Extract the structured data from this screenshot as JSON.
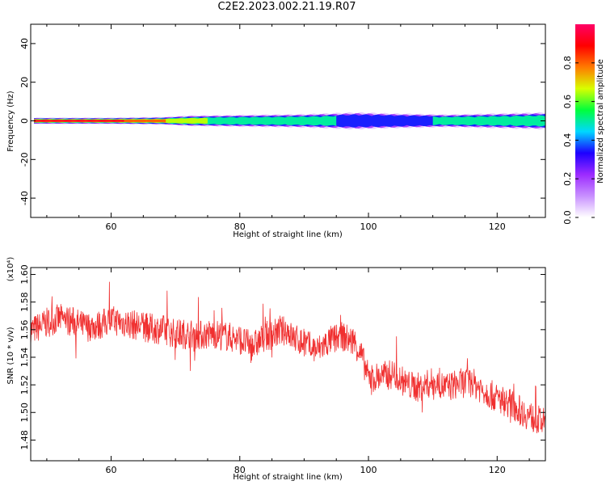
{
  "title": "C2E2.2023.002.21.19.R07",
  "chart_data": [
    {
      "type": "heatmap",
      "title": "",
      "xlabel": "Height of straight line (km)",
      "ylabel": "Frequency (Hz)",
      "xlim": [
        47.5,
        127.5
      ],
      "ylim": [
        -50,
        50
      ],
      "xticks": [
        60,
        80,
        100,
        120
      ],
      "yticks": [
        -40,
        -20,
        0,
        20,
        40
      ],
      "colorbar": {
        "label": "Normalized spectral amplitude",
        "range": [
          0.0,
          1.0
        ],
        "ticks": [
          0.0,
          0.2,
          0.4,
          0.6,
          0.8
        ],
        "colormap": [
          "#ffffff",
          "#c890ff",
          "#9c2bff",
          "#1d00ff",
          "#00d8ff",
          "#00ff3c",
          "#d8ff00",
          "#ff7a00",
          "#ff0000",
          "#ff0066"
        ]
      },
      "band": {
        "center_hz": 0,
        "half_width_hz": [
          [
            48,
            1.5
          ],
          [
            60,
            1.5
          ],
          [
            68,
            1.8
          ],
          [
            72,
            2.5
          ],
          [
            80,
            2.8
          ],
          [
            90,
            3.2
          ],
          [
            98,
            4.0
          ],
          [
            104,
            3.5
          ],
          [
            112,
            3.0
          ],
          [
            120,
            3.5
          ],
          [
            127,
            4.0
          ]
        ],
        "peak_amplitude": [
          [
            48,
            0.95
          ],
          [
            60,
            0.9
          ],
          [
            66,
            0.85
          ],
          [
            70,
            0.7
          ],
          [
            78,
            0.55
          ],
          [
            85,
            0.45
          ],
          [
            95,
            0.45
          ],
          [
            100,
            0.42
          ],
          [
            110,
            0.45
          ],
          [
            118,
            0.5
          ],
          [
            127,
            0.45
          ]
        ]
      }
    },
    {
      "type": "line",
      "title": "",
      "xlabel": "Height of straight line (km)",
      "ylabel": "SNR (10 * v/v)",
      "y_multiplier": "(x10⁴)",
      "xlim": [
        47.5,
        127.5
      ],
      "ylim": [
        1.465,
        1.605
      ],
      "xticks": [
        60,
        80,
        100,
        120
      ],
      "yticks": [
        1.48,
        1.5,
        1.52,
        1.54,
        1.56,
        1.58,
        1.6
      ],
      "series": [
        {
          "color": "#f03030",
          "x": [
            48,
            50,
            52,
            54,
            56,
            58,
            60,
            62,
            64,
            66,
            68,
            70,
            72,
            74,
            76,
            78,
            80,
            81,
            82,
            84,
            86,
            87.5,
            88,
            90,
            92,
            94,
            96,
            98,
            99,
            100,
            102,
            104,
            106,
            108,
            110,
            112,
            114,
            116,
            118,
            120,
            122,
            124,
            126,
            127.5
          ],
          "y": [
            1.56,
            1.565,
            1.568,
            1.566,
            1.562,
            1.563,
            1.567,
            1.565,
            1.563,
            1.561,
            1.56,
            1.557,
            1.557,
            1.556,
            1.557,
            1.555,
            1.553,
            1.55,
            1.548,
            1.555,
            1.558,
            1.56,
            1.555,
            1.55,
            1.545,
            1.552,
            1.555,
            1.55,
            1.54,
            1.525,
            1.526,
            1.528,
            1.52,
            1.518,
            1.522,
            1.518,
            1.521,
            1.522,
            1.516,
            1.51,
            1.507,
            1.5,
            1.495,
            1.492
          ],
          "noise": 0.011
        }
      ]
    }
  ]
}
